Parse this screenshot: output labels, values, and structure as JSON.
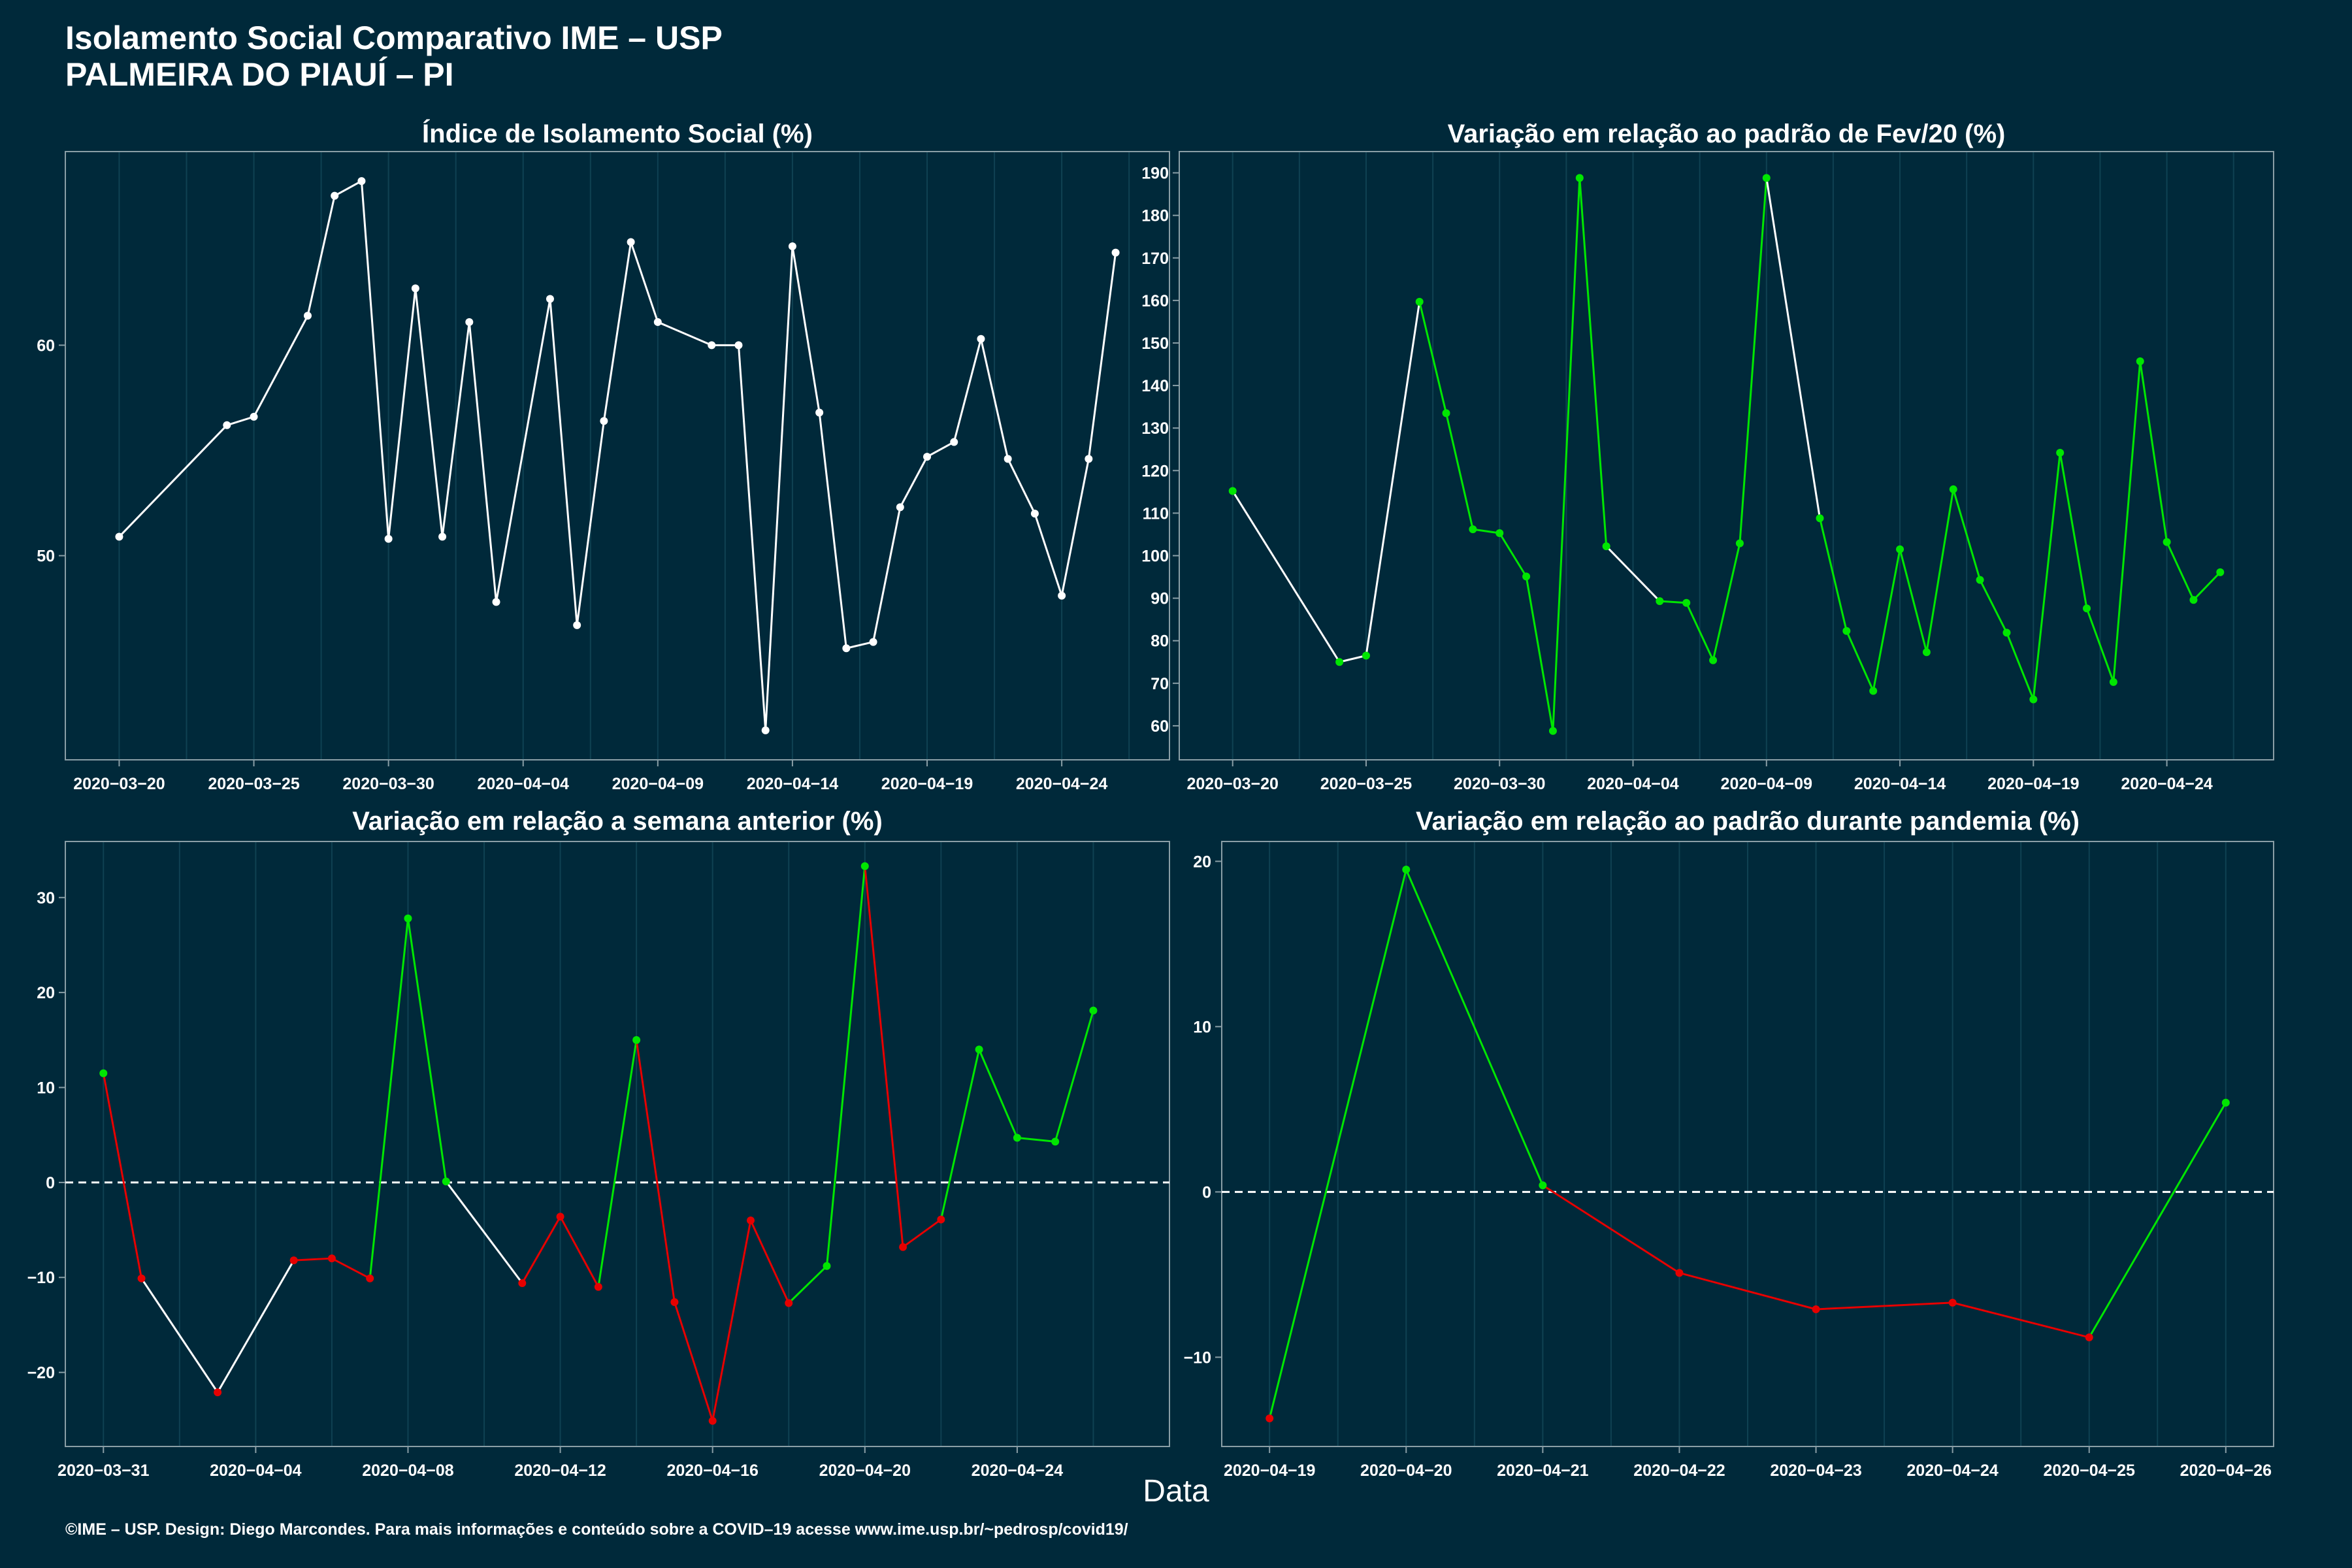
{
  "header": {
    "title_line1": "Isolamento Social Comparativo IME – USP",
    "title_line2": "PALMEIRA DO PIAUÍ – PI"
  },
  "xlabel": "Data",
  "footer": "©IME – USP. Design: Diego Marcondes. Para mais informações e conteúdo sobre a COVID–19 acesse www.ime.usp.br/~pedrosp/covid19/",
  "colors": {
    "background": "#00293a",
    "text": "#ffffff",
    "grid": "#0f4152",
    "neutral_line": "#ffffff",
    "increase": "#00e600",
    "decrease": "#e60000"
  },
  "chart_data": [
    {
      "id": "isolamento",
      "type": "line",
      "title": "Índice de Isolamento Social (%)",
      "x_type": "date",
      "xlim": [
        "2020-03-18",
        "2020-04-28"
      ],
      "ylim": [
        40.3,
        69.2
      ],
      "xticks": [
        "2020-03-20",
        "2020-03-25",
        "2020-03-30",
        "2020-04-04",
        "2020-04-09",
        "2020-04-14",
        "2020-04-19",
        "2020-04-24"
      ],
      "xtick_labels": [
        "2020−03−20",
        "2020−03−25",
        "2020−03−30",
        "2020−04−04",
        "2020−04−09",
        "2020−04−14",
        "2020−04−19",
        "2020−04−24"
      ],
      "yticks": [
        50,
        60
      ],
      "ytick_labels": [
        "50",
        "60"
      ],
      "dashed_zero": false,
      "points": [
        {
          "x": "2020-03-20",
          "y": 50.9,
          "c": "neutral"
        },
        {
          "x": "2020-03-24",
          "y": 56.2,
          "c": "neutral"
        },
        {
          "x": "2020-03-25",
          "y": 56.6,
          "c": "neutral"
        },
        {
          "x": "2020-03-27",
          "y": 61.4,
          "c": "neutral"
        },
        {
          "x": "2020-03-28",
          "y": 67.1,
          "c": "neutral"
        },
        {
          "x": "2020-03-29",
          "y": 67.8,
          "c": "neutral"
        },
        {
          "x": "2020-03-30",
          "y": 50.8,
          "c": "neutral"
        },
        {
          "x": "2020-03-31",
          "y": 62.7,
          "c": "neutral"
        },
        {
          "x": "2020-04-01",
          "y": 50.9,
          "c": "neutral"
        },
        {
          "x": "2020-04-02",
          "y": 61.1,
          "c": "neutral"
        },
        {
          "x": "2020-04-03",
          "y": 47.8,
          "c": "neutral"
        },
        {
          "x": "2020-04-05",
          "y": 62.2,
          "c": "neutral"
        },
        {
          "x": "2020-04-06",
          "y": 46.7,
          "c": "neutral"
        },
        {
          "x": "2020-04-07",
          "y": 56.4,
          "c": "neutral"
        },
        {
          "x": "2020-04-08",
          "y": 64.9,
          "c": "neutral"
        },
        {
          "x": "2020-04-09",
          "y": 61.1,
          "c": "neutral"
        },
        {
          "x": "2020-04-11",
          "y": 60.0,
          "c": "neutral"
        },
        {
          "x": "2020-04-12",
          "y": 60.0,
          "c": "neutral"
        },
        {
          "x": "2020-04-13",
          "y": 41.7,
          "c": "neutral"
        },
        {
          "x": "2020-04-14",
          "y": 64.7,
          "c": "neutral"
        },
        {
          "x": "2020-04-15",
          "y": 56.8,
          "c": "neutral"
        },
        {
          "x": "2020-04-16",
          "y": 45.6,
          "c": "neutral"
        },
        {
          "x": "2020-04-17",
          "y": 45.9,
          "c": "neutral"
        },
        {
          "x": "2020-04-18",
          "y": 52.3,
          "c": "neutral"
        },
        {
          "x": "2020-04-19",
          "y": 54.7,
          "c": "neutral"
        },
        {
          "x": "2020-04-20",
          "y": 55.4,
          "c": "neutral"
        },
        {
          "x": "2020-04-21",
          "y": 60.3,
          "c": "neutral"
        },
        {
          "x": "2020-04-22",
          "y": 54.6,
          "c": "neutral"
        },
        {
          "x": "2020-04-23",
          "y": 52.0,
          "c": "neutral"
        },
        {
          "x": "2020-04-24",
          "y": 48.1,
          "c": "neutral"
        },
        {
          "x": "2020-04-25",
          "y": 54.6,
          "c": "neutral"
        },
        {
          "x": "2020-04-26",
          "y": 64.4,
          "c": "neutral"
        }
      ]
    },
    {
      "id": "fev20",
      "type": "line",
      "title": "Variação em relação ao padrão de Fev/20 (%)",
      "x_type": "date",
      "xlim": [
        "2020-03-18",
        "2020-04-28"
      ],
      "ylim": [
        52,
        195
      ],
      "xticks": [
        "2020-03-20",
        "2020-03-25",
        "2020-03-30",
        "2020-04-04",
        "2020-04-09",
        "2020-04-14",
        "2020-04-19",
        "2020-04-24"
      ],
      "xtick_labels": [
        "2020−03−20",
        "2020−03−25",
        "2020−03−30",
        "2020−04−04",
        "2020−04−09",
        "2020−04−14",
        "2020−04−19",
        "2020−04−24"
      ],
      "yticks": [
        60,
        70,
        80,
        90,
        100,
        110,
        120,
        130,
        140,
        150,
        160,
        170,
        180,
        190
      ],
      "ytick_labels": [
        "60",
        "70",
        "80",
        "90",
        "100",
        "110",
        "120",
        "130",
        "140",
        "150",
        "160",
        "170",
        "180",
        "190"
      ],
      "dashed_zero": false,
      "points": [
        {
          "x": "2020-03-20",
          "y": 115.2,
          "c": "increase"
        },
        {
          "x": "2020-03-24",
          "y": 75.0,
          "c": "increase"
        },
        {
          "x": "2020-03-25",
          "y": 76.5,
          "c": "increase"
        },
        {
          "x": "2020-03-27",
          "y": 159.7,
          "c": "increase"
        },
        {
          "x": "2020-03-28",
          "y": 133.5,
          "c": "increase"
        },
        {
          "x": "2020-03-29",
          "y": 106.2,
          "c": "increase"
        },
        {
          "x": "2020-03-30",
          "y": 105.3,
          "c": "increase"
        },
        {
          "x": "2020-03-31",
          "y": 95.1,
          "c": "increase"
        },
        {
          "x": "2020-04-01",
          "y": 58.8,
          "c": "increase"
        },
        {
          "x": "2020-04-02",
          "y": 188.8,
          "c": "increase"
        },
        {
          "x": "2020-04-03",
          "y": 102.2,
          "c": "increase"
        },
        {
          "x": "2020-04-05",
          "y": 89.3,
          "c": "increase"
        },
        {
          "x": "2020-04-06",
          "y": 88.9,
          "c": "increase"
        },
        {
          "x": "2020-04-07",
          "y": 75.4,
          "c": "increase"
        },
        {
          "x": "2020-04-08",
          "y": 102.9,
          "c": "increase"
        },
        {
          "x": "2020-04-09",
          "y": 188.8,
          "c": "increase"
        },
        {
          "x": "2020-04-11",
          "y": 108.8,
          "c": "increase"
        },
        {
          "x": "2020-04-12",
          "y": 82.3,
          "c": "increase"
        },
        {
          "x": "2020-04-13",
          "y": 68.2,
          "c": "increase"
        },
        {
          "x": "2020-04-14",
          "y": 101.5,
          "c": "increase"
        },
        {
          "x": "2020-04-15",
          "y": 77.3,
          "c": "increase"
        },
        {
          "x": "2020-04-16",
          "y": 115.6,
          "c": "increase"
        },
        {
          "x": "2020-04-17",
          "y": 94.3,
          "c": "increase"
        },
        {
          "x": "2020-04-18",
          "y": 81.9,
          "c": "increase"
        },
        {
          "x": "2020-04-19",
          "y": 66.2,
          "c": "increase"
        },
        {
          "x": "2020-04-20",
          "y": 124.2,
          "c": "increase"
        },
        {
          "x": "2020-04-21",
          "y": 87.6,
          "c": "increase"
        },
        {
          "x": "2020-04-22",
          "y": 70.3,
          "c": "increase"
        },
        {
          "x": "2020-04-23",
          "y": 145.7,
          "c": "increase"
        },
        {
          "x": "2020-04-24",
          "y": 103.2,
          "c": "increase"
        },
        {
          "x": "2020-04-25",
          "y": 89.6,
          "c": "increase"
        },
        {
          "x": "2020-04-26",
          "y": 96.1,
          "c": "increase"
        }
      ],
      "neutral_segments": [
        [
          0,
          1
        ],
        [
          1,
          2
        ],
        [
          2,
          3
        ],
        [
          10,
          11
        ],
        [
          15,
          16
        ]
      ]
    },
    {
      "id": "semana",
      "type": "line",
      "title": "Variação em relação a semana anterior (%)",
      "x_type": "date",
      "xlim": [
        "2020-03-30",
        "2020-04-28"
      ],
      "ylim": [
        -27.8,
        35.9
      ],
      "xticks": [
        "2020-03-31",
        "2020-04-04",
        "2020-04-08",
        "2020-04-12",
        "2020-04-16",
        "2020-04-20",
        "2020-04-24"
      ],
      "xtick_labels": [
        "2020−03−31",
        "2020−04−04",
        "2020−04−08",
        "2020−04−12",
        "2020−04−16",
        "2020−04−20",
        "2020−04−24"
      ],
      "yticks": [
        -20,
        -10,
        0,
        10,
        20,
        30
      ],
      "ytick_labels": [
        "−20",
        "−10",
        "0",
        "10",
        "20",
        "30"
      ],
      "dashed_zero": true,
      "points": [
        {
          "x": "2020-03-31",
          "y": 11.5,
          "c": "increase"
        },
        {
          "x": "2020-04-01",
          "y": -10.1,
          "c": "decrease"
        },
        {
          "x": "2020-04-03",
          "y": -22.1,
          "c": "decrease"
        },
        {
          "x": "2020-04-05",
          "y": -8.2,
          "c": "decrease"
        },
        {
          "x": "2020-04-06",
          "y": -8.0,
          "c": "decrease"
        },
        {
          "x": "2020-04-07",
          "y": -10.1,
          "c": "decrease"
        },
        {
          "x": "2020-04-08",
          "y": 27.8,
          "c": "increase"
        },
        {
          "x": "2020-04-09",
          "y": 0.1,
          "c": "increase"
        },
        {
          "x": "2020-04-11",
          "y": -10.6,
          "c": "decrease"
        },
        {
          "x": "2020-04-12",
          "y": -3.6,
          "c": "decrease"
        },
        {
          "x": "2020-04-13",
          "y": -11.0,
          "c": "decrease"
        },
        {
          "x": "2020-04-14",
          "y": 15.0,
          "c": "increase"
        },
        {
          "x": "2020-04-15",
          "y": -12.6,
          "c": "decrease"
        },
        {
          "x": "2020-04-16",
          "y": -25.1,
          "c": "decrease"
        },
        {
          "x": "2020-04-17",
          "y": -4.0,
          "c": "decrease"
        },
        {
          "x": "2020-04-18",
          "y": -12.7,
          "c": "decrease"
        },
        {
          "x": "2020-04-19",
          "y": -8.8,
          "c": "increase"
        },
        {
          "x": "2020-04-20",
          "y": 33.3,
          "c": "increase"
        },
        {
          "x": "2020-04-21",
          "y": -6.8,
          "c": "decrease"
        },
        {
          "x": "2020-04-22",
          "y": -3.9,
          "c": "decrease"
        },
        {
          "x": "2020-04-23",
          "y": 14.0,
          "c": "increase"
        },
        {
          "x": "2020-04-24",
          "y": 4.7,
          "c": "increase"
        },
        {
          "x": "2020-04-25",
          "y": 4.3,
          "c": "increase"
        },
        {
          "x": "2020-04-26",
          "y": 18.1,
          "c": "increase"
        }
      ],
      "neutral_segments": [
        [
          1,
          2
        ],
        [
          2,
          3
        ],
        [
          7,
          8
        ]
      ]
    },
    {
      "id": "pandemia",
      "type": "line",
      "title": "Variação em relação ao padrão durante pandemia (%)",
      "x_type": "date",
      "xlim": [
        "2020-04-18.65",
        "2020-04-26.35"
      ],
      "ylim": [
        -15.4,
        21.2
      ],
      "xticks": [
        "2020-04-19",
        "2020-04-20",
        "2020-04-21",
        "2020-04-22",
        "2020-04-23",
        "2020-04-24",
        "2020-04-25",
        "2020-04-26"
      ],
      "xtick_labels": [
        "2020−04−19",
        "2020−04−20",
        "2020−04−21",
        "2020−04−22",
        "2020−04−23",
        "2020−04−24",
        "2020−04−25",
        "2020−04−26"
      ],
      "yticks": [
        -10,
        0,
        10,
        20
      ],
      "ytick_labels": [
        "−10",
        "0",
        "10",
        "20"
      ],
      "dashed_zero": true,
      "points": [
        {
          "x": "2020-04-19",
          "y": -13.7,
          "c": "decrease"
        },
        {
          "x": "2020-04-20",
          "y": 19.5,
          "c": "increase"
        },
        {
          "x": "2020-04-21",
          "y": 0.4,
          "c": "increase"
        },
        {
          "x": "2020-04-22",
          "y": -4.9,
          "c": "decrease"
        },
        {
          "x": "2020-04-23",
          "y": -7.1,
          "c": "decrease"
        },
        {
          "x": "2020-04-24",
          "y": -6.7,
          "c": "decrease"
        },
        {
          "x": "2020-04-25",
          "y": -8.8,
          "c": "decrease"
        },
        {
          "x": "2020-04-26",
          "y": 5.4,
          "c": "increase"
        }
      ]
    }
  ]
}
